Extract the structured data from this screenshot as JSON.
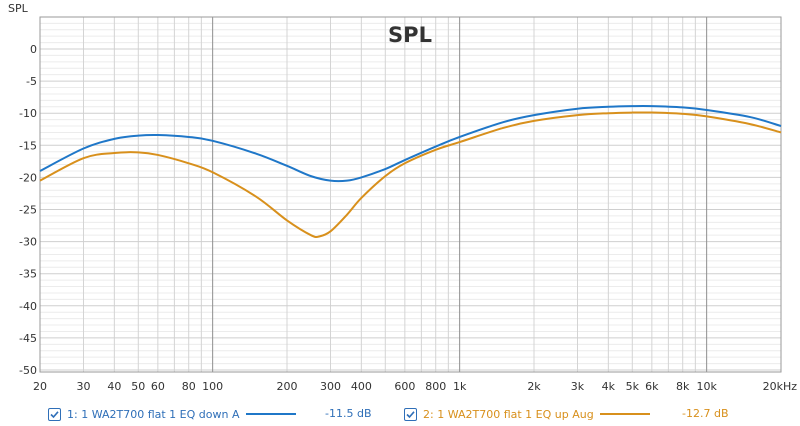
{
  "chart_data": {
    "type": "line",
    "title": "SPL",
    "ylabel": "SPL",
    "xlabel": "",
    "x_scale": "log",
    "xlim": [
      20,
      20000
    ],
    "ylim": [
      -50,
      5
    ],
    "grid": true,
    "x_ticks": [
      20,
      30,
      40,
      50,
      60,
      80,
      100,
      200,
      300,
      400,
      600,
      800,
      1000,
      2000,
      3000,
      4000,
      5000,
      6000,
      8000,
      10000,
      20000
    ],
    "x_tick_labels": [
      "20",
      "30",
      "40",
      "50",
      "60",
      "80",
      "100",
      "200",
      "300",
      "400",
      "600",
      "800",
      "1k",
      "2k",
      "3k",
      "4k",
      "5k",
      "6k",
      "8k",
      "10k",
      "20kHz"
    ],
    "y_ticks": [
      0,
      -5,
      -10,
      -15,
      -20,
      -25,
      -30,
      -35,
      -40,
      -45,
      -50
    ],
    "y_tick_labels": [
      "0",
      "-5",
      "-10",
      "-15",
      "-20",
      "-25",
      "-30",
      "-35",
      "-40",
      "-45",
      "-50"
    ],
    "series": [
      {
        "name": "1: 1 WA2T700 flat 1 EQ down A",
        "value_label": "-11.5 dB",
        "color": "#1f77c8",
        "x": [
          20,
          30,
          40,
          50,
          60,
          80,
          100,
          150,
          200,
          250,
          300,
          350,
          400,
          500,
          600,
          800,
          1000,
          1500,
          2000,
          3000,
          4000,
          5000,
          6000,
          8000,
          10000,
          15000,
          20000
        ],
        "y": [
          -19.0,
          -15.5,
          -14.0,
          -13.5,
          -13.4,
          -13.7,
          -14.3,
          -16.3,
          -18.2,
          -19.8,
          -20.5,
          -20.5,
          -20.0,
          -18.7,
          -17.3,
          -15.2,
          -13.7,
          -11.4,
          -10.3,
          -9.3,
          -9.0,
          -8.9,
          -8.9,
          -9.1,
          -9.5,
          -10.6,
          -12.0
        ]
      },
      {
        "name": "2: 1 WA2T700 flat 1 EQ up Aug",
        "value_label": "-12.7 dB",
        "color": "#d8901c",
        "x": [
          20,
          30,
          40,
          50,
          60,
          80,
          100,
          150,
          200,
          250,
          270,
          300,
          350,
          400,
          500,
          600,
          800,
          1000,
          1500,
          2000,
          3000,
          4000,
          5000,
          6000,
          8000,
          10000,
          15000,
          20000
        ],
        "y": [
          -20.5,
          -17.0,
          -16.2,
          -16.1,
          -16.5,
          -17.8,
          -19.2,
          -23.0,
          -26.7,
          -29.0,
          -29.2,
          -28.4,
          -25.8,
          -23.2,
          -19.8,
          -17.8,
          -15.7,
          -14.5,
          -12.3,
          -11.2,
          -10.3,
          -10.0,
          -9.9,
          -9.9,
          -10.1,
          -10.5,
          -11.7,
          -13.0
        ]
      }
    ]
  }
}
